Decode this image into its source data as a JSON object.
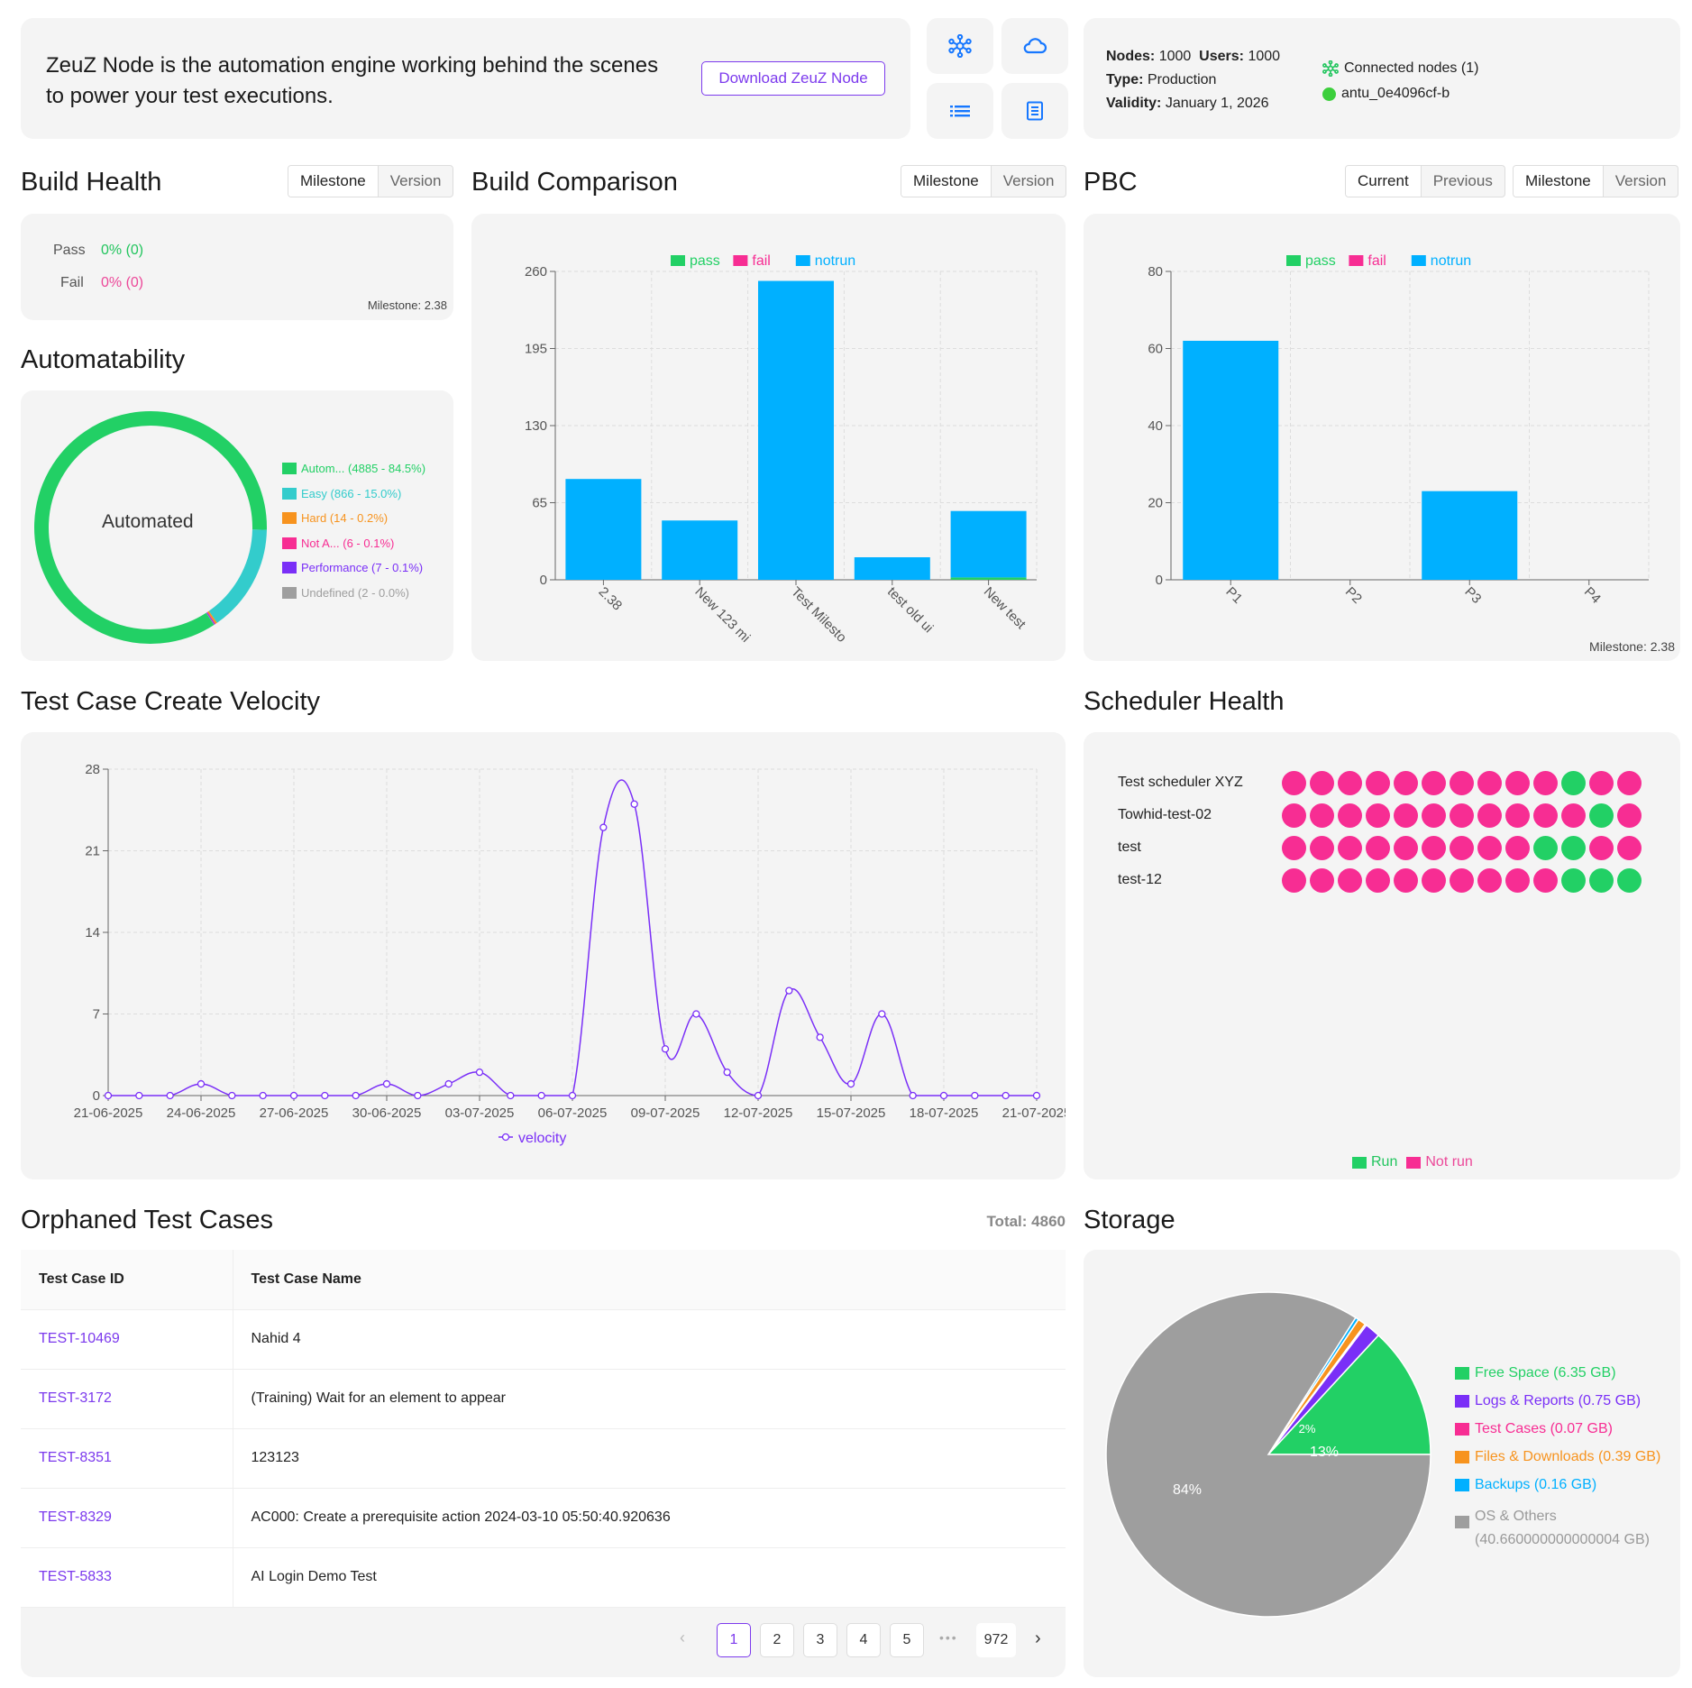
{
  "banner": {
    "text_line1": "ZeuZ Node is the automation engine working behind the scenes",
    "text_line2": "to power your test executions.",
    "download_label": "Download ZeuZ Node"
  },
  "quick_buttons": [
    "network-icon",
    "cloud-icon",
    "list-icon",
    "document-icon"
  ],
  "license": {
    "nodes_label": "Nodes:",
    "nodes_value": "1000",
    "users_label": "Users:",
    "users_value": "1000",
    "type_label": "Type:",
    "type_value": "Production",
    "validity_label": "Validity:",
    "validity_value": "January 1, 2026",
    "connected_label": "Connected nodes (1)",
    "node_name": "antu_0e4096cf-b"
  },
  "build_health": {
    "title": "Build Health",
    "toggle": [
      "Milestone",
      "Version"
    ],
    "pass_label": "Pass",
    "pass_value": "0% (0)",
    "fail_label": "Fail",
    "fail_value": "0% (0)",
    "milestone": "Milestone: 2.38"
  },
  "automatability": {
    "title": "Automatability",
    "center_label": "Automated",
    "legend": [
      {
        "label": "Autom...",
        "detail": "(4885 - 84.5%)",
        "color": "#22d065"
      },
      {
        "label": "Easy",
        "detail": "(866 - 15.0%)",
        "color": "#33cccc"
      },
      {
        "label": "Hard",
        "detail": "(14 - 0.2%)",
        "color": "#f7931e"
      },
      {
        "label": "Not A...",
        "detail": "(6 - 0.1%)",
        "color": "#f72d93"
      },
      {
        "label": "Performance",
        "detail": "(7 - 0.1%)",
        "color": "#7a2ff7"
      },
      {
        "label": "Undefined",
        "detail": "(2 - 0.0%)",
        "color": "#9e9e9e"
      }
    ]
  },
  "build_comparison": {
    "title": "Build Comparison",
    "toggle": [
      "Milestone",
      "Version"
    ],
    "legend": [
      {
        "label": "pass",
        "color": "#22d065"
      },
      {
        "label": "fail",
        "color": "#f72d93"
      },
      {
        "label": "notrun",
        "color": "#00b0ff"
      }
    ]
  },
  "pbc": {
    "title": "PBC",
    "toggle1": [
      "Current",
      "Previous"
    ],
    "toggle2": [
      "Milestone",
      "Version"
    ],
    "legend": [
      {
        "label": "pass",
        "color": "#22d065"
      },
      {
        "label": "fail",
        "color": "#f72d93"
      },
      {
        "label": "notrun",
        "color": "#00b0ff"
      }
    ],
    "milestone": "Milestone: 2.38"
  },
  "velocity": {
    "title": "Test Case Create Velocity",
    "legend_label": "velocity"
  },
  "scheduler": {
    "title": "Scheduler Health",
    "rows": [
      {
        "name": "Test scheduler XYZ",
        "dots": "NNNNNNNNNNRNN"
      },
      {
        "name": "Towhid-test-02",
        "dots": "NNNNNNNNNNNRN"
      },
      {
        "name": "test",
        "dots": "NNNNNNNNNRRNN"
      },
      {
        "name": "test-12",
        "dots": "NNNNNNNNNNRRR"
      }
    ],
    "legend_run": "Run",
    "legend_notrun": "Not run",
    "run_color": "#22d065",
    "notrun_color": "#f72d93"
  },
  "orphaned": {
    "title": "Orphaned Test Cases",
    "total": "Total: 4860",
    "col_id": "Test Case ID",
    "col_name": "Test Case Name",
    "rows": [
      {
        "id": "TEST-10469",
        "name": "Nahid 4"
      },
      {
        "id": "TEST-3172",
        "name": "(Training) Wait for an element to appear"
      },
      {
        "id": "TEST-8351",
        "name": "123123"
      },
      {
        "id": "TEST-8329",
        "name": "AC000: Create a prerequisite action 2024-03-10 05:50:40.920636"
      },
      {
        "id": "TEST-5833",
        "name": "AI Login Demo Test"
      }
    ],
    "pagination": [
      "1",
      "2",
      "3",
      "4",
      "5",
      "•••",
      "972"
    ]
  },
  "storage": {
    "title": "Storage",
    "legend": [
      {
        "label": "Free Space (6.35 GB)",
        "color": "#22d065"
      },
      {
        "label": "Logs & Reports (0.75 GB)",
        "color": "#7a2ff7"
      },
      {
        "label": "Test Cases (0.07 GB)",
        "color": "#f72d93"
      },
      {
        "label": "Files & Downloads (0.39 GB)",
        "color": "#f7931e"
      },
      {
        "label": "Backups (0.16 GB)",
        "color": "#00b0ff"
      },
      {
        "label": "OS & Others",
        "label2": "(40.660000000000004 GB)",
        "color": "#9e9e9e"
      }
    ],
    "pct_free": "13%",
    "pct_os": "84%",
    "pct_small": "2%"
  },
  "chart_data": [
    {
      "type": "bar",
      "title": "Build Comparison",
      "categories": [
        "2.38",
        "New 123 mi",
        "Test Milesto",
        "test old ui",
        "New test"
      ],
      "series": [
        {
          "name": "pass",
          "values": [
            0,
            0,
            0,
            0,
            2
          ]
        },
        {
          "name": "fail",
          "values": [
            0,
            0,
            0,
            0,
            0
          ]
        },
        {
          "name": "notrun",
          "values": [
            85,
            50,
            252,
            19,
            56
          ]
        }
      ],
      "ylim": [
        0,
        260
      ],
      "yticks": [
        "0",
        "65",
        "130",
        "195",
        "260"
      ],
      "stacked": true,
      "grid": true,
      "legend": "top"
    },
    {
      "type": "bar",
      "title": "PBC",
      "categories": [
        "P1",
        "P2",
        "P3",
        "P4"
      ],
      "series": [
        {
          "name": "pass",
          "values": [
            0,
            0,
            0,
            0
          ]
        },
        {
          "name": "fail",
          "values": [
            0,
            0,
            0,
            0
          ]
        },
        {
          "name": "notrun",
          "values": [
            62,
            0,
            23,
            0
          ]
        }
      ],
      "ylim": [
        0,
        80
      ],
      "yticks": [
        "0",
        "20",
        "40",
        "60",
        "80"
      ],
      "stacked": true,
      "grid": true,
      "legend": "top"
    },
    {
      "type": "line",
      "title": "Test Case Create Velocity",
      "x": [
        "21-06-2025",
        "22-06-2025",
        "23-06-2025",
        "24-06-2025",
        "25-06-2025",
        "26-06-2025",
        "27-06-2025",
        "28-06-2025",
        "29-06-2025",
        "30-06-2025",
        "01-07-2025",
        "02-07-2025",
        "03-07-2025",
        "04-07-2025",
        "05-07-2025",
        "06-07-2025",
        "07-07-2025",
        "08-07-2025",
        "09-07-2025",
        "10-07-2025",
        "11-07-2025",
        "12-07-2025",
        "13-07-2025",
        "14-07-2025",
        "15-07-2025",
        "16-07-2025",
        "17-07-2025",
        "18-07-2025",
        "19-07-2025",
        "20-07-2025",
        "21-07-2025"
      ],
      "xticks": [
        "21-06-2025",
        "24-06-2025",
        "27-06-2025",
        "30-06-2025",
        "03-07-2025",
        "06-07-2025",
        "09-07-2025",
        "12-07-2025",
        "15-07-2025",
        "18-07-2025",
        "21-07-2025"
      ],
      "series": [
        {
          "name": "velocity",
          "values": [
            0,
            0,
            0,
            1,
            0,
            0,
            0,
            0,
            0,
            1,
            0,
            1,
            2,
            0,
            0,
            0,
            23,
            25,
            4,
            7,
            2,
            0,
            9,
            5,
            1,
            7,
            0,
            0,
            0,
            0,
            0
          ]
        }
      ],
      "ylim": [
        0,
        28
      ],
      "yticks": [
        "0",
        "7",
        "14",
        "21",
        "28"
      ],
      "grid": true,
      "legend": "bottom"
    },
    {
      "type": "pie",
      "title": "Storage",
      "labels": [
        "Free Space",
        "Logs & Reports",
        "Test Cases",
        "Files & Downloads",
        "Backups",
        "OS & Others"
      ],
      "values": [
        6.35,
        0.75,
        0.07,
        0.39,
        0.16,
        40.660000000000004
      ]
    },
    {
      "type": "pie",
      "title": "Automatability",
      "labels": [
        "Autom...",
        "Easy",
        "Hard",
        "Not A...",
        "Performance",
        "Undefined"
      ],
      "values": [
        4885,
        866,
        14,
        6,
        7,
        2
      ]
    }
  ]
}
